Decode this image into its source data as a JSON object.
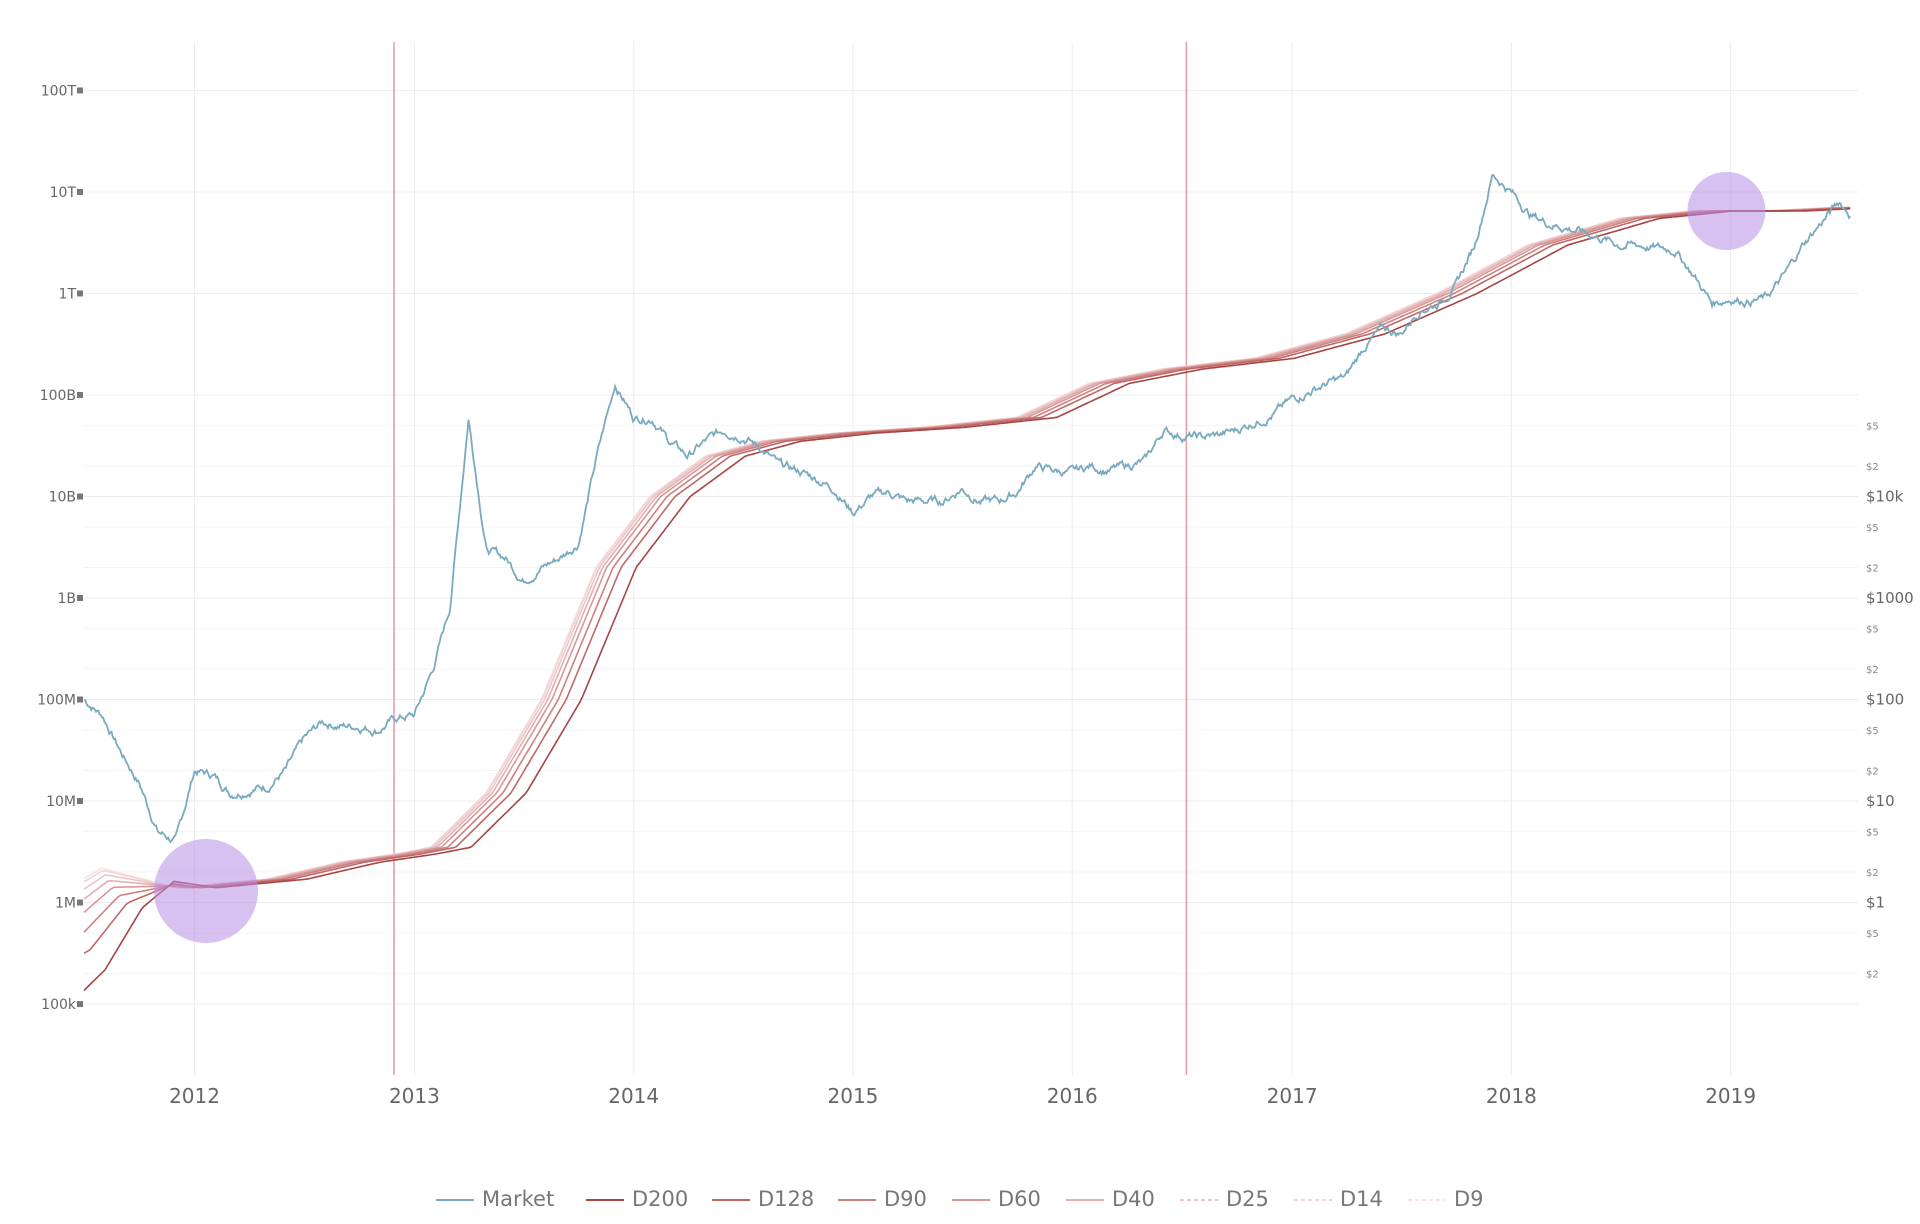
{
  "chart_data": {
    "type": "line",
    "title": "",
    "xlabel": "",
    "ylabel": "",
    "x_axis": {
      "type": "date",
      "range": [
        "2011-07-01",
        "2019-08-01"
      ],
      "tick_labels": [
        "2012",
        "2013",
        "2014",
        "2015",
        "2016",
        "2017",
        "2018",
        "2019"
      ]
    },
    "y_axis_left": {
      "scale": "log",
      "range": [
        20000,
        300000000000000
      ],
      "tick_labels": [
        "100k",
        "1M",
        "10M",
        "100M",
        "1B",
        "10B",
        "100B",
        "1T",
        "10T",
        "100T"
      ],
      "tick_values": [
        100000,
        1000000,
        10000000,
        100000000,
        1000000000,
        10000000000,
        100000000000,
        1000000000000,
        10000000000000,
        100000000000000
      ]
    },
    "y_axis_right": {
      "scale": "log",
      "major_ticks": [
        {
          "label": "$1",
          "value": 1
        },
        {
          "label": "$10",
          "value": 10
        },
        {
          "label": "$100",
          "value": 100
        },
        {
          "label": "$1000",
          "value": 1000
        },
        {
          "label": "$10k",
          "value": 10000
        }
      ],
      "minor_ticks": [
        {
          "label": "$2",
          "value": 0.2
        },
        {
          "label": "$5",
          "value": 0.5
        },
        {
          "label": "$2",
          "value": 2
        },
        {
          "label": "$5",
          "value": 5
        },
        {
          "label": "$2",
          "value": 20
        },
        {
          "label": "$5",
          "value": 50
        },
        {
          "label": "$2",
          "value": 200
        },
        {
          "label": "$5",
          "value": 500
        },
        {
          "label": "$2",
          "value": 2000
        },
        {
          "label": "$5",
          "value": 5000
        },
        {
          "label": "$2",
          "value": 20000
        },
        {
          "label": "$5",
          "value": 50000
        }
      ]
    },
    "grid": true,
    "legend_position": "bottom",
    "vertical_markers": [
      "2012-11-28",
      "2016-07-09"
    ],
    "highlight_circles": [
      {
        "x": "2012-01-20",
        "y": 1300000
      },
      {
        "x": "2018-12-25",
        "y": 6500000000000
      }
    ],
    "series": [
      {
        "name": "Market",
        "color": "#7aaabf",
        "points": [
          [
            "2011-07-01",
            100000000
          ],
          [
            "2011-08-01",
            70000000
          ],
          [
            "2011-09-01",
            30000000
          ],
          [
            "2011-10-01",
            15000000
          ],
          [
            "2011-11-01",
            5000000
          ],
          [
            "2011-12-01",
            4000000
          ],
          [
            "2012-01-01",
            20000000
          ],
          [
            "2012-02-01",
            18000000
          ],
          [
            "2012-03-01",
            12000000
          ],
          [
            "2012-04-01",
            13000000
          ],
          [
            "2012-05-01",
            14000000
          ],
          [
            "2012-06-01",
            20000000
          ],
          [
            "2012-07-01",
            40000000
          ],
          [
            "2012-08-01",
            60000000
          ],
          [
            "2012-09-01",
            55000000
          ],
          [
            "2012-10-01",
            55000000
          ],
          [
            "2012-11-01",
            50000000
          ],
          [
            "2012-12-01",
            65000000
          ],
          [
            "2013-01-01",
            70000000
          ],
          [
            "2013-02-01",
            200000000
          ],
          [
            "2013-03-01",
            800000000
          ],
          [
            "2013-04-01",
            60000000000
          ],
          [
            "2013-05-01",
            3000000000
          ],
          [
            "2013-06-01",
            2500000000
          ],
          [
            "2013-07-01",
            1500000000
          ],
          [
            "2013-08-01",
            2000000000
          ],
          [
            "2013-09-01",
            2500000000
          ],
          [
            "2013-10-01",
            3500000000
          ],
          [
            "2013-11-01",
            25000000000
          ],
          [
            "2013-12-01",
            130000000000
          ],
          [
            "2014-01-01",
            60000000000
          ],
          [
            "2014-02-01",
            60000000000
          ],
          [
            "2014-03-01",
            35000000000
          ],
          [
            "2014-04-01",
            25000000000
          ],
          [
            "2014-05-01",
            35000000000
          ],
          [
            "2014-06-01",
            45000000000
          ],
          [
            "2014-07-01",
            40000000000
          ],
          [
            "2014-08-01",
            30000000000
          ],
          [
            "2014-09-01",
            20000000000
          ],
          [
            "2014-10-01",
            18000000000
          ],
          [
            "2014-11-01",
            15000000000
          ],
          [
            "2014-12-01",
            12000000000
          ],
          [
            "2015-01-01",
            7000000000
          ],
          [
            "2015-02-01",
            10000000000
          ],
          [
            "2015-03-01",
            11000000000
          ],
          [
            "2015-04-01",
            9000000000
          ],
          [
            "2015-05-01",
            9000000000
          ],
          [
            "2015-06-01",
            9000000000
          ],
          [
            "2015-07-01",
            12000000000
          ],
          [
            "2015-08-01",
            9000000000
          ],
          [
            "2015-09-01",
            9000000000
          ],
          [
            "2015-10-01",
            11000000000
          ],
          [
            "2015-11-01",
            20000000000
          ],
          [
            "2015-12-01",
            18000000000
          ],
          [
            "2016-01-01",
            17000000000
          ],
          [
            "2016-02-01",
            20000000000
          ],
          [
            "2016-03-01",
            18000000000
          ],
          [
            "2016-04-01",
            20000000000
          ],
          [
            "2016-05-01",
            22000000000
          ],
          [
            "2016-06-01",
            45000000000
          ],
          [
            "2016-07-01",
            40000000000
          ],
          [
            "2016-08-01",
            38000000000
          ],
          [
            "2016-09-01",
            40000000000
          ],
          [
            "2016-10-01",
            45000000000
          ],
          [
            "2016-11-01",
            55000000000
          ],
          [
            "2016-12-01",
            65000000000
          ],
          [
            "2017-01-01",
            90000000000
          ],
          [
            "2017-02-01",
            110000000000
          ],
          [
            "2017-03-01",
            130000000000
          ],
          [
            "2017-04-01",
            150000000000
          ],
          [
            "2017-05-01",
            300000000000
          ],
          [
            "2017-06-01",
            450000000000
          ],
          [
            "2017-07-01",
            400000000000
          ],
          [
            "2017-08-01",
            700000000000
          ],
          [
            "2017-09-01",
            800000000000
          ],
          [
            "2017-10-01",
            1200000000000
          ],
          [
            "2017-11-01",
            3000000000000
          ],
          [
            "2017-12-01",
            15000000000000
          ],
          [
            "2018-01-01",
            10000000000000
          ],
          [
            "2018-02-01",
            6000000000000
          ],
          [
            "2018-03-01",
            5000000000000
          ],
          [
            "2018-04-01",
            4500000000000
          ],
          [
            "2018-05-01",
            4000000000000
          ],
          [
            "2018-06-01",
            3500000000000
          ],
          [
            "2018-07-01",
            3000000000000
          ],
          [
            "2018-08-01",
            3000000000000
          ],
          [
            "2018-09-01",
            2800000000000
          ],
          [
            "2018-10-01",
            2700000000000
          ],
          [
            "2018-11-01",
            1500000000000
          ],
          [
            "2018-12-01",
            800000000000
          ],
          [
            "2019-01-01",
            900000000000
          ],
          [
            "2019-02-01",
            850000000000
          ],
          [
            "2019-03-01",
            900000000000
          ],
          [
            "2019-04-01",
            1500000000000
          ],
          [
            "2019-05-01",
            3000000000000
          ],
          [
            "2019-06-01",
            5000000000000
          ],
          [
            "2019-07-01",
            8000000000000
          ],
          [
            "2019-07-20",
            6000000000000
          ]
        ]
      },
      {
        "name": "D200",
        "color": "#a84444",
        "offset_days": 200
      },
      {
        "name": "D128",
        "color": "#c06868",
        "offset_days": 128
      },
      {
        "name": "D90",
        "color": "#cd8080",
        "offset_days": 90
      },
      {
        "name": "D60",
        "color": "#d89898",
        "offset_days": 60
      },
      {
        "name": "D40",
        "color": "#e2afaf",
        "offset_days": 40
      },
      {
        "name": "D25",
        "color": "#ecc5c5",
        "offset_days": 25
      },
      {
        "name": "D14",
        "color": "#f2d5d5",
        "offset_days": 14
      },
      {
        "name": "D9",
        "color": "#f6e2e2",
        "offset_days": 9
      }
    ],
    "moving_average_reference": [
      [
        "2011-07-01",
        1000000
      ],
      [
        "2011-09-01",
        1800000
      ],
      [
        "2012-01-01",
        1400000
      ],
      [
        "2012-06-01",
        1700000
      ],
      [
        "2012-10-01",
        2500000
      ],
      [
        "2013-01-01",
        3000000
      ],
      [
        "2013-03-01",
        3500000
      ],
      [
        "2013-06-01",
        12000000
      ],
      [
        "2013-09-01",
        100000000
      ],
      [
        "2013-12-01",
        2000000000
      ],
      [
        "2014-03-01",
        10000000000
      ],
      [
        "2014-06-01",
        25000000000
      ],
      [
        "2014-09-01",
        35000000000
      ],
      [
        "2015-01-01",
        42000000000
      ],
      [
        "2015-06-01",
        48000000000
      ],
      [
        "2015-11-01",
        60000000000
      ],
      [
        "2016-03-01",
        130000000000
      ],
      [
        "2016-07-01",
        180000000000
      ],
      [
        "2016-12-01",
        230000000000
      ],
      [
        "2017-05-01",
        400000000000
      ],
      [
        "2017-10-01",
        1000000000000
      ],
      [
        "2018-03-01",
        3000000000000
      ],
      [
        "2018-08-01",
        5500000000000
      ],
      [
        "2018-12-01",
        6500000000000
      ],
      [
        "2019-04-01",
        6500000000000
      ],
      [
        "2019-07-20",
        7000000000000
      ]
    ]
  }
}
